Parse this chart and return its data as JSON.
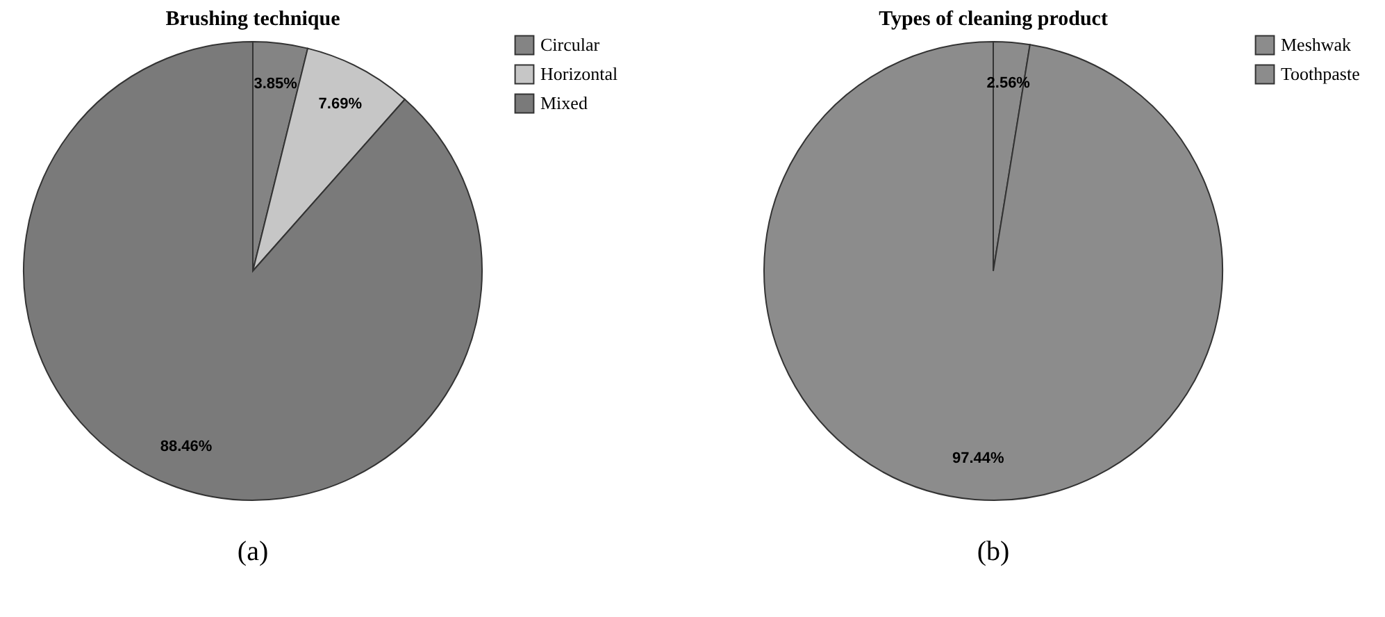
{
  "chart_data": [
    {
      "type": "pie",
      "title": "Brushing technique",
      "categories": [
        "Circular",
        "Horizontal",
        "Mixed"
      ],
      "values": [
        3.85,
        7.69,
        88.46
      ],
      "colors": [
        "#848484",
        "#c6c6c6",
        "#7a7a7a"
      ],
      "value_labels": [
        "3.85%",
        "7.69%",
        "88.46%"
      ],
      "legend": "right",
      "annotations": [
        "(a)"
      ]
    },
    {
      "type": "pie",
      "title": "Types of cleaning product",
      "categories": [
        "Meshwak",
        "Toothpaste"
      ],
      "values": [
        2.56,
        97.44
      ],
      "colors": [
        "#8c8c8c",
        "#8c8c8c"
      ],
      "value_labels": [
        "2.56%",
        "97.44%"
      ],
      "legend": "right",
      "annotations": [
        "(b)"
      ]
    }
  ]
}
